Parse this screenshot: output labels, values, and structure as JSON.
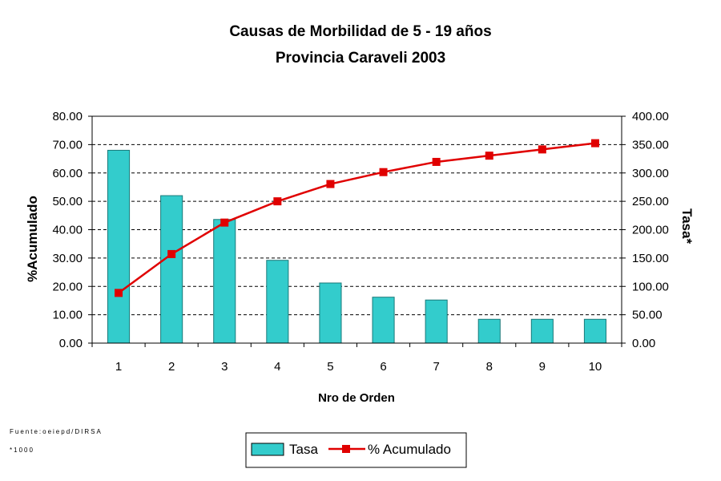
{
  "chart_data": {
    "type": "bar",
    "title": "Causas de Morbilidad de 5 - 19 años",
    "subtitle": "Provincia Caraveli 2003",
    "xlabel": "Nro de Orden",
    "ylabel_left": "%Acumulado",
    "ylabel_right": "Tasa*",
    "categories": [
      "1",
      "2",
      "3",
      "4",
      "5",
      "6",
      "7",
      "8",
      "9",
      "10"
    ],
    "left_axis": {
      "range": [
        0,
        80
      ],
      "ticks": [
        "0.00",
        "10.00",
        "20.00",
        "30.00",
        "40.00",
        "50.00",
        "60.00",
        "70.00",
        "80.00"
      ]
    },
    "right_axis": {
      "range": [
        0,
        400
      ],
      "ticks": [
        "0.00",
        "50.00",
        "100.00",
        "150.00",
        "200.00",
        "250.00",
        "300.00",
        "350.00",
        "400.00"
      ]
    },
    "series": [
      {
        "name": "Tasa",
        "type": "bar",
        "axis": "right",
        "color": "#33CCCC",
        "values": [
          340,
          260,
          218,
          146,
          106,
          81,
          76,
          42,
          42,
          42
        ]
      },
      {
        "name": "% Acumulado",
        "type": "line",
        "axis": "left",
        "color": "#FF0000",
        "values": [
          17.7,
          31.4,
          42.5,
          50.0,
          56.1,
          60.3,
          63.9,
          66.1,
          68.3,
          70.5
        ]
      }
    ],
    "grid": "horizontal dashed",
    "legend": "bottom-center"
  },
  "footnotes": {
    "source": "Fuente:oeiepd/DIRSA",
    "scale": "*1000"
  }
}
